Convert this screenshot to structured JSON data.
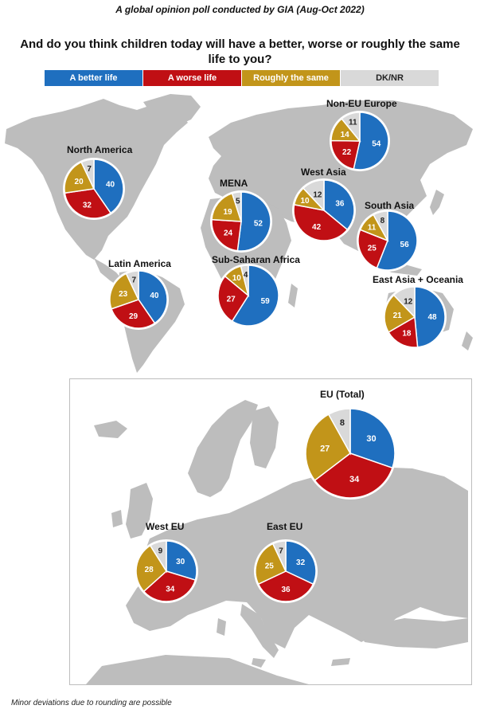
{
  "header": {
    "subtitle": "A global opinion poll conducted by GIA (Aug-Oct 2022)",
    "question": "And do you think children today will have a better, worse or roughly the same life to you?"
  },
  "legend": [
    {
      "label": "A better life",
      "color": "#1f6fbf",
      "text_color": "#ffffff"
    },
    {
      "label": "A worse life",
      "color": "#c00f14",
      "text_color": "#ffffff"
    },
    {
      "label": "Roughly the same",
      "color": "#c2951a",
      "text_color": "#ffffff"
    },
    {
      "label": "DK/NR",
      "color": "#d9d9d9",
      "text_color": "#222222"
    }
  ],
  "footnote": "Minor deviations due to rounding are possible",
  "chart_data": {
    "type": "pie",
    "categories": [
      "A better life",
      "A worse life",
      "Roughly the same",
      "DK/NR"
    ],
    "regions": [
      {
        "name": "North America",
        "values": [
          40,
          32,
          20,
          7
        ]
      },
      {
        "name": "Latin America",
        "values": [
          40,
          29,
          23,
          7
        ]
      },
      {
        "name": "MENA",
        "values": [
          52,
          24,
          19,
          5
        ]
      },
      {
        "name": "Sub-Saharan Africa",
        "values": [
          59,
          27,
          10,
          4
        ]
      },
      {
        "name": "Non-EU Europe",
        "values": [
          54,
          22,
          14,
          11
        ]
      },
      {
        "name": "West Asia",
        "values": [
          36,
          42,
          10,
          12
        ]
      },
      {
        "name": "South Asia",
        "values": [
          56,
          25,
          11,
          8
        ]
      },
      {
        "name": "East Asia + Oceania",
        "values": [
          48,
          18,
          21,
          12
        ]
      },
      {
        "name": "EU (Total)",
        "values": [
          30,
          34,
          27,
          8
        ]
      },
      {
        "name": "West EU",
        "values": [
          30,
          34,
          28,
          9
        ]
      },
      {
        "name": "East EU",
        "values": [
          32,
          36,
          25,
          7
        ]
      }
    ]
  }
}
